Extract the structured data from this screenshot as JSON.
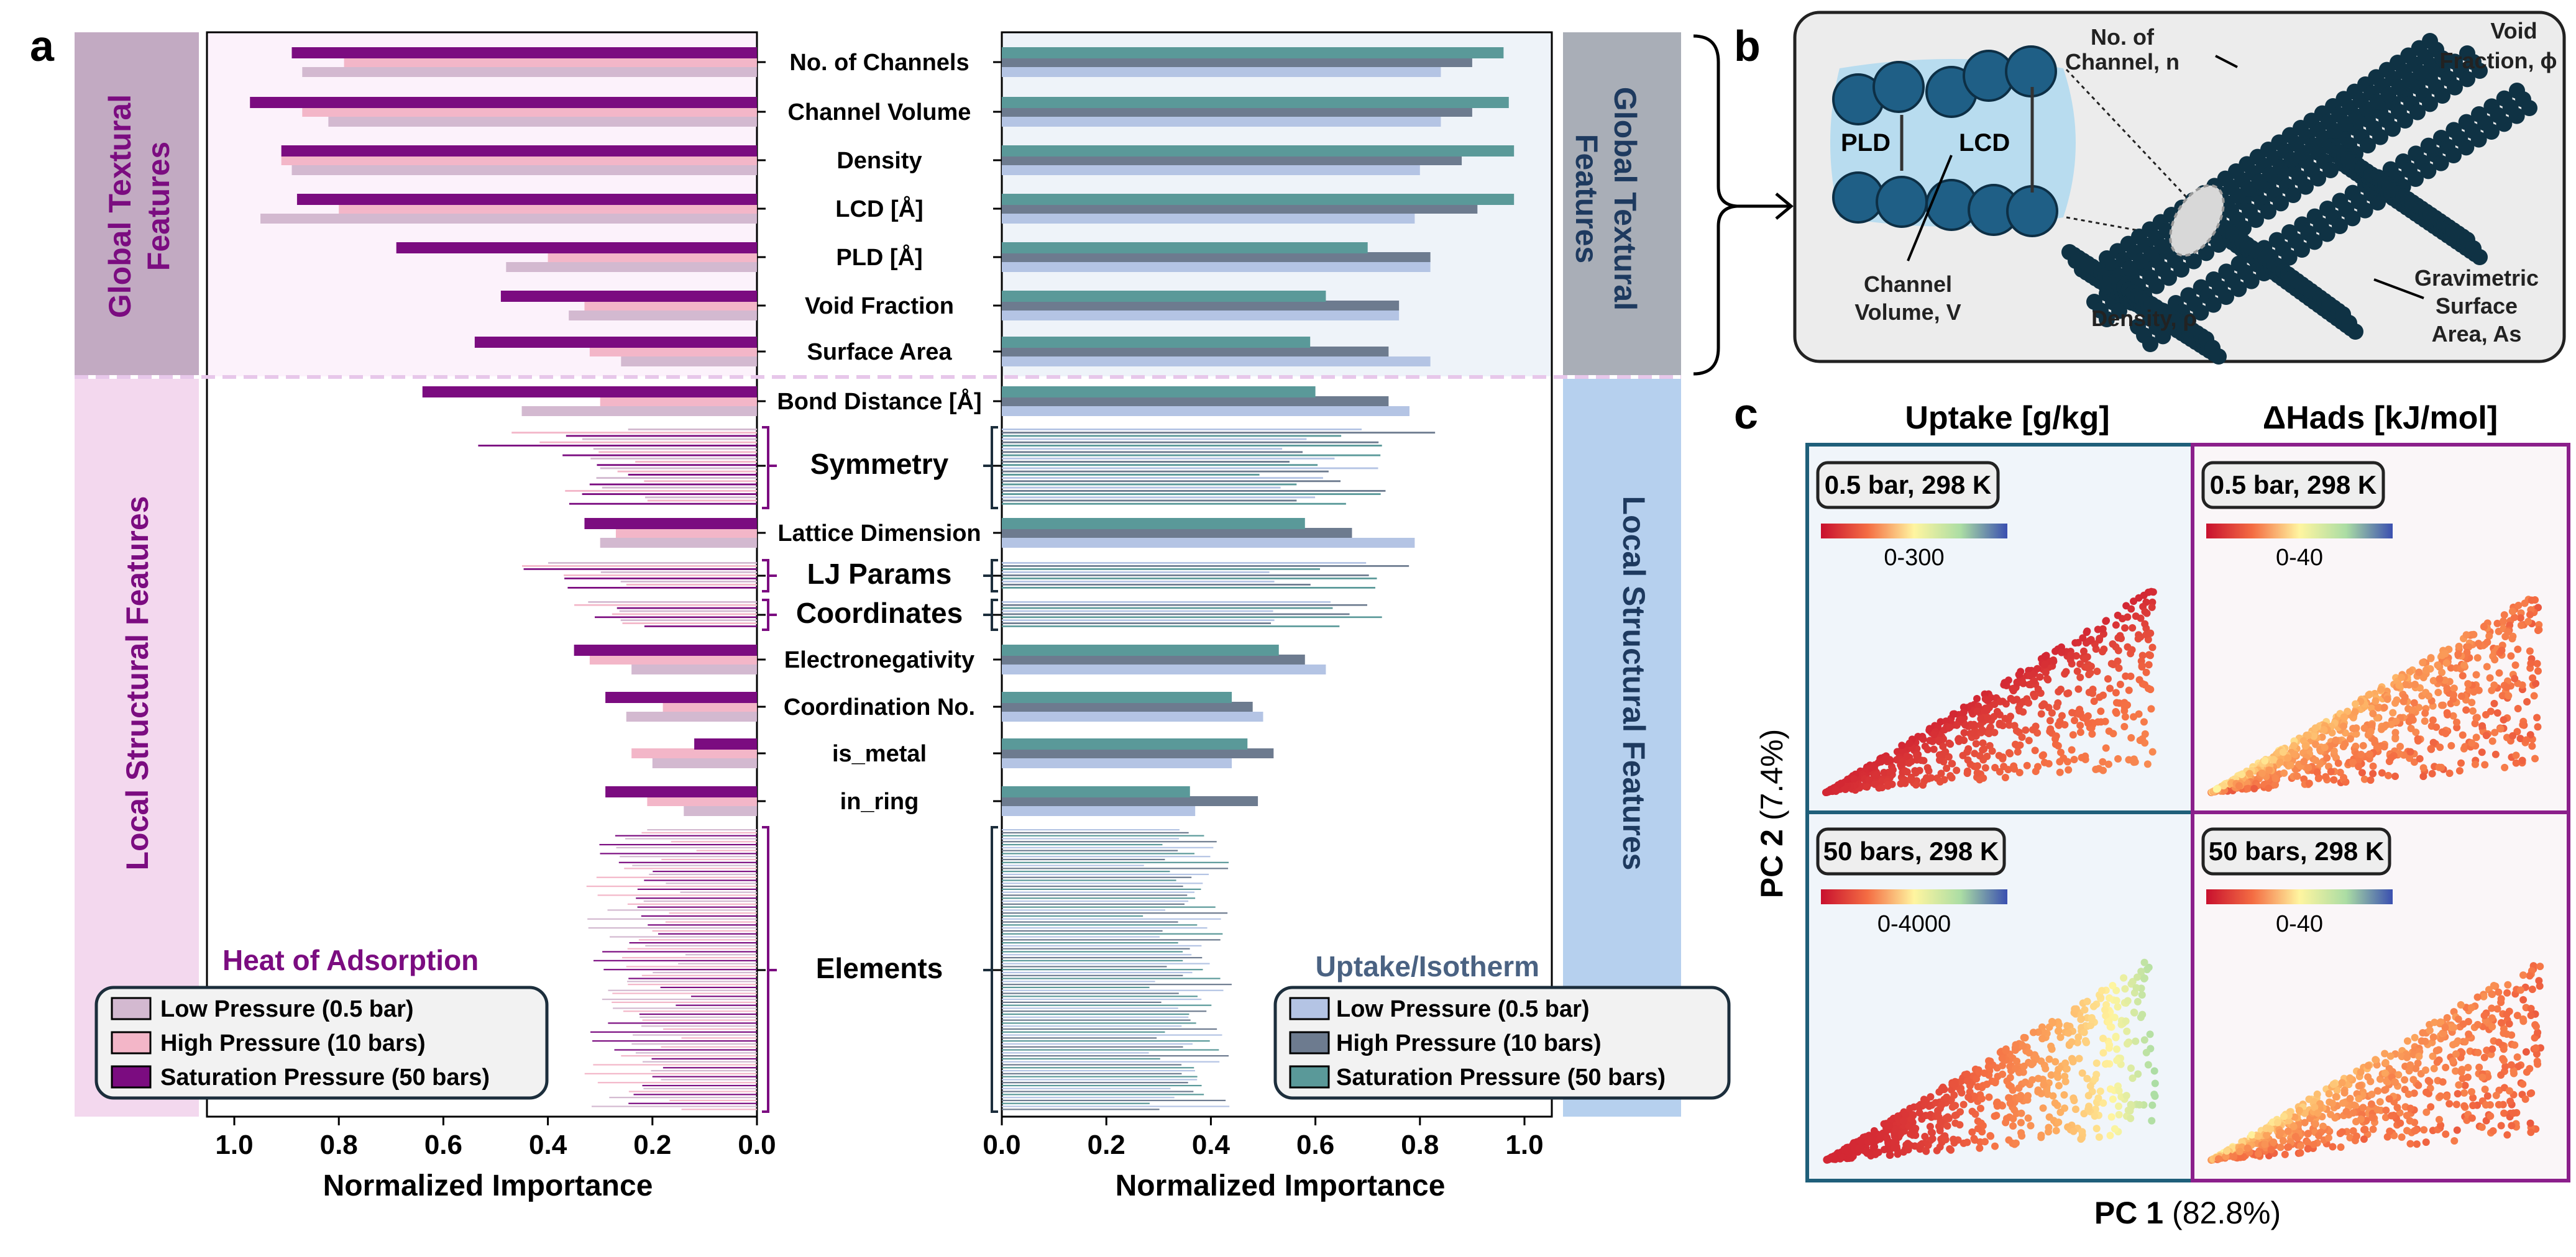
{
  "panels": {
    "a": "a",
    "b": "b",
    "c": "c"
  },
  "sections": {
    "global_left": "Global Textural Features",
    "local_left": "Local Structural Features",
    "global_right": "Global Textural Features",
    "local_right": "Local Structural Features"
  },
  "colors": {
    "hoa_low": "#d3b9d0",
    "hoa_high": "#f3b6c8",
    "hoa_sat": "#7b0c80",
    "up_low": "#b4c4e4",
    "up_high": "#6d7b8f",
    "up_sat": "#5a9999",
    "global_band_left": "#c2aac2",
    "local_band_left": "#f3d8ee",
    "global_band_right": "#a9aeb7",
    "local_band_right": "#b6d0ee"
  },
  "chart_data": [
    {
      "type": "bar",
      "orientation": "horizontal",
      "x_direction": "reversed",
      "title": "Heat of Adsorption",
      "xlabel": "Normalized Importance",
      "xlim": [
        0,
        1.05
      ],
      "xticks": [
        "1.0",
        "0.8",
        "0.6",
        "0.4",
        "0.2",
        "0.0"
      ],
      "series": [
        {
          "name": "Low Pressure (0.5 bar)",
          "values": [
            0.87,
            0.82,
            0.89,
            0.95,
            0.48,
            0.36,
            0.26,
            0.45
          ]
        },
        {
          "name": "High Pressure (10 bars)",
          "values": [
            0.79,
            0.87,
            0.91,
            0.8,
            0.4,
            0.33,
            0.32,
            0.3
          ]
        },
        {
          "name": "Saturation Pressure (50 bars)",
          "values": [
            0.89,
            0.97,
            0.91,
            0.88,
            0.69,
            0.49,
            0.54,
            0.64
          ]
        }
      ],
      "legend": "bottom-left",
      "multi_feature_values": [
        0.29,
        0.47,
        0.45,
        0.47,
        0.45,
        0.55,
        0.42,
        0.4,
        0.38,
        0.35,
        0.33,
        0.37,
        0.3,
        0.32,
        0.35,
        0.34,
        0.22,
        0.42,
        0.4,
        0.38,
        0.36,
        0.3,
        0.26,
        0.36,
        0.3,
        0.22,
        0.24,
        0.21,
        0.18
      ]
    },
    {
      "type": "bar",
      "orientation": "horizontal",
      "title": "Uptake/Isotherm",
      "xlabel": "Normalized Importance",
      "xlim": [
        0,
        1.05
      ],
      "xticks": [
        "0.0",
        "0.2",
        "0.4",
        "0.6",
        "0.8",
        "1.0"
      ],
      "series": [
        {
          "name": "Low Pressure (0.5 bar)",
          "values": [
            0.84,
            0.84,
            0.8,
            0.79,
            0.82,
            0.76,
            0.82,
            0.78
          ]
        },
        {
          "name": "High Pressure (10 bars)",
          "values": [
            0.9,
            0.9,
            0.88,
            0.91,
            0.82,
            0.76,
            0.74,
            0.74
          ]
        },
        {
          "name": "Saturation Pressure (50 bars)",
          "values": [
            0.96,
            0.97,
            0.98,
            0.98,
            0.7,
            0.62,
            0.59,
            0.6
          ]
        }
      ],
      "legend": "bottom-right",
      "multi_feature_values": [
        0.81,
        0.83,
        0.8,
        0.82,
        0.78,
        0.75,
        0.72,
        0.76,
        0.74,
        0.7,
        0.78,
        0.73,
        0.72,
        0.75,
        0.7,
        0.68,
        0.66,
        0.74,
        0.72,
        0.76,
        0.78,
        0.84,
        0.7,
        0.66,
        0.62,
        0.7,
        0.65,
        0.72,
        0.68
      ]
    }
  ],
  "categories": [
    {
      "label": "No. of Channels",
      "kind": "single"
    },
    {
      "label": "Channel Volume",
      "kind": "single"
    },
    {
      "label": "Density",
      "kind": "single"
    },
    {
      "label": "LCD [Å]",
      "kind": "single"
    },
    {
      "label": "PLD [Å]",
      "kind": "single"
    },
    {
      "label": "Void Fraction",
      "kind": "single"
    },
    {
      "label": "Surface Area",
      "kind": "single"
    },
    {
      "label": "Bond Distance [Å]",
      "kind": "single"
    },
    {
      "label": "Symmetry",
      "kind": "group"
    },
    {
      "label": "Lattice Dimension",
      "kind": "single"
    },
    {
      "label": "LJ Params",
      "kind": "group"
    },
    {
      "label": "Coordinates",
      "kind": "group"
    },
    {
      "label": "Electronegativity",
      "kind": "single"
    },
    {
      "label": "Coordination No.",
      "kind": "single"
    },
    {
      "label": "is_metal",
      "kind": "single"
    },
    {
      "label": "in_ring",
      "kind": "single"
    },
    {
      "label": "Elements",
      "kind": "group"
    }
  ],
  "local_single_values": {
    "left": {
      "Lattice Dimension": [
        0.3,
        0.27,
        0.33
      ],
      "Electronegativity": [
        0.24,
        0.32,
        0.35
      ],
      "Coordination No.": [
        0.25,
        0.18,
        0.29
      ],
      "is_metal": [
        0.2,
        0.24,
        0.12
      ],
      "in_ring": [
        0.14,
        0.21,
        0.29
      ]
    },
    "right": {
      "Lattice Dimension": [
        0.79,
        0.67,
        0.58
      ],
      "Electronegativity": [
        0.62,
        0.58,
        0.53
      ],
      "Coordination No.": [
        0.5,
        0.48,
        0.44
      ],
      "is_metal": [
        0.44,
        0.52,
        0.47
      ],
      "in_ring": [
        0.37,
        0.49,
        0.36
      ]
    }
  },
  "panel_b": {
    "labels": [
      "No. of",
      "Channel, n",
      "Void",
      "Fraction, ϕ",
      "PLD",
      "LCD",
      "Channel",
      "Volume, V",
      "Density, ρ",
      "Gravimetric",
      "Surface",
      "Area, As"
    ]
  },
  "panel_c": {
    "col_titles": [
      "Uptake [g/kg]",
      "ΔHads [kJ/mol]"
    ],
    "plots": [
      {
        "condition": "0.5 bar, 298 K",
        "range": "0-300"
      },
      {
        "condition": "0.5 bar, 298 K",
        "range": "0-40"
      },
      {
        "condition": "50 bars, 298 K",
        "range": "0-4000"
      },
      {
        "condition": "50 bars, 298 K",
        "range": "0-40"
      }
    ],
    "xlabel_bold": "PC 1",
    "xlabel_pct": "(82.8%)",
    "ylabel_bold": "PC 2",
    "ylabel_pct": "(7.4%)"
  }
}
